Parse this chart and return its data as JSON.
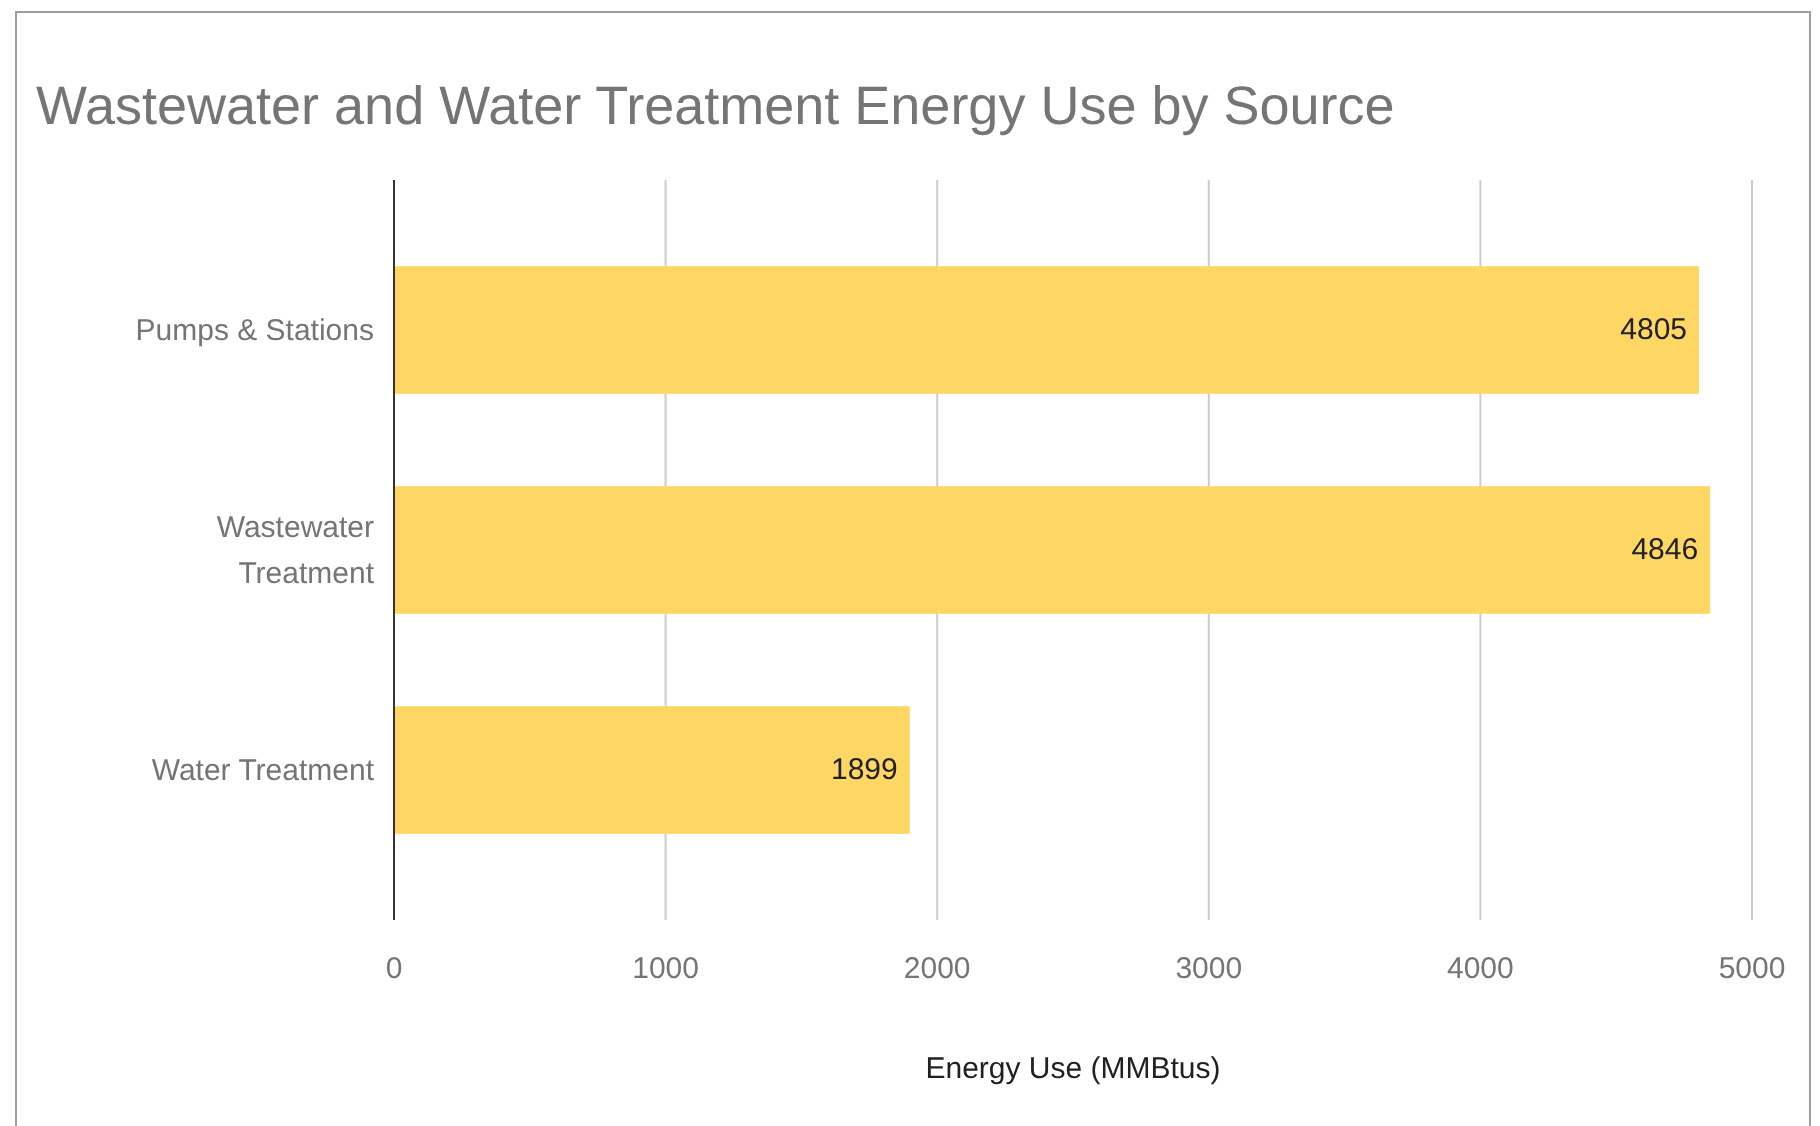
{
  "chart_data": {
    "type": "bar",
    "orientation": "horizontal",
    "title": "Wastewater and Water Treatment Energy Use by Source",
    "categories": [
      "Pumps & Stations",
      "Wastewater Treatment",
      "Water Treatment"
    ],
    "values": [
      4805,
      4846,
      1899
    ],
    "color": "#fdd663",
    "xlabel": "Energy Use (MMBtus)",
    "xlim": [
      0,
      5000
    ],
    "xticks": [
      0,
      1000,
      2000,
      3000,
      4000,
      5000
    ],
    "grid": "x",
    "data_labels": true
  }
}
